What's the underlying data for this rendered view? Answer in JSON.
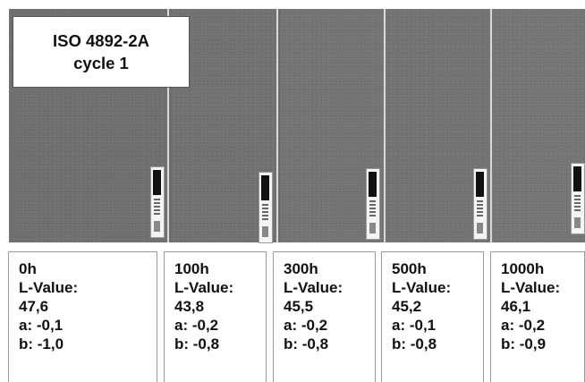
{
  "title": {
    "line1": "ISO 4892-2A",
    "line2": "cycle 1"
  },
  "samples": [
    {
      "time": "0h",
      "l_label": "L-Value:",
      "l_value": "47,6",
      "a": "a: -0,1",
      "b": "b: -1,0"
    },
    {
      "time": "100h",
      "l_label": "L-Value:",
      "l_value": "43,8",
      "a": "a: -0,2",
      "b": "b: -0,8"
    },
    {
      "time": "300h",
      "l_label": "L-Value:",
      "l_value": "45,5",
      "a": "a: -0,2",
      "b": "b: -0,8"
    },
    {
      "time": "500h",
      "l_label": "L-Value:",
      "l_value": "45,2",
      "a": "a: -0,1",
      "b": "b: -0,8"
    },
    {
      "time": "1000h",
      "l_label": "L-Value:",
      "l_value": "46,1",
      "a": "a: -0,2",
      "b": "b: -0,9"
    }
  ]
}
